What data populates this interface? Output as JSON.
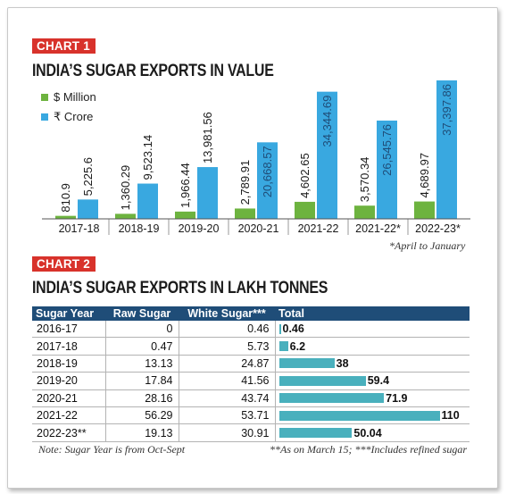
{
  "chart_data": [
    {
      "type": "bar",
      "tag": "CHART 1",
      "title": "INDIA’S SUGAR EXPORTS IN VALUE",
      "categories": [
        "2017-18",
        "2018-19",
        "2019-20",
        "2020-21",
        "2021-22",
        "2021-22*",
        "2022-23*"
      ],
      "series": [
        {
          "name": "$ Million",
          "color": "#6db33f",
          "values": [
            810.9,
            1360.29,
            1966.44,
            2789.91,
            4602.65,
            3570.34,
            4689.97
          ],
          "labels": [
            "810.9",
            "1,360.29",
            "1,966.44",
            "2,789.91",
            "4,602.65",
            "3,570.34",
            "4,689.97"
          ]
        },
        {
          "name": "₹ Crore",
          "color": "#39a8e0",
          "values": [
            5225.6,
            9523.14,
            13981.56,
            20668.57,
            34344.69,
            26545.76,
            37397.86
          ],
          "labels": [
            "5,225.6",
            "9,523.14",
            "13,981.56",
            "20,668.57",
            "34,344.69",
            "26,545.76",
            "37,397.86"
          ]
        }
      ],
      "footnote": "*April to January"
    },
    {
      "type": "table",
      "tag": "CHART 2",
      "title": "INDIA’S SUGAR EXPORTS IN LAKH TONNES",
      "columns": [
        "Sugar Year",
        "Raw Sugar",
        "White Sugar***",
        "Total"
      ],
      "rows": [
        {
          "year": "2016-17",
          "raw": "0",
          "white": "0.46",
          "total": "0.46",
          "total_value": 0.46
        },
        {
          "year": "2017-18",
          "raw": "0.47",
          "white": "5.73",
          "total": "6.2",
          "total_value": 6.2
        },
        {
          "year": "2018-19",
          "raw": "13.13",
          "white": "24.87",
          "total": "38",
          "total_value": 38
        },
        {
          "year": "2019-20",
          "raw": "17.84",
          "white": "41.56",
          "total": "59.4",
          "total_value": 59.4
        },
        {
          "year": "2020-21",
          "raw": "28.16",
          "white": "43.74",
          "total": "71.9",
          "total_value": 71.9
        },
        {
          "year": "2021-22",
          "raw": "56.29",
          "white": "53.71",
          "total": "110",
          "total_value": 110
        },
        {
          "year": "2022-23**",
          "raw": "19.13",
          "white": "30.91",
          "total": "50.04",
          "total_value": 50.04
        }
      ],
      "bar_color": "#49b0bd",
      "header_color": "#1f4d78",
      "note_left": "Note: Sugar Year is from Oct-Sept",
      "note_right": "**As on March 15; ***Includes refined sugar"
    }
  ],
  "colors": {
    "tag": "#d8322b"
  }
}
